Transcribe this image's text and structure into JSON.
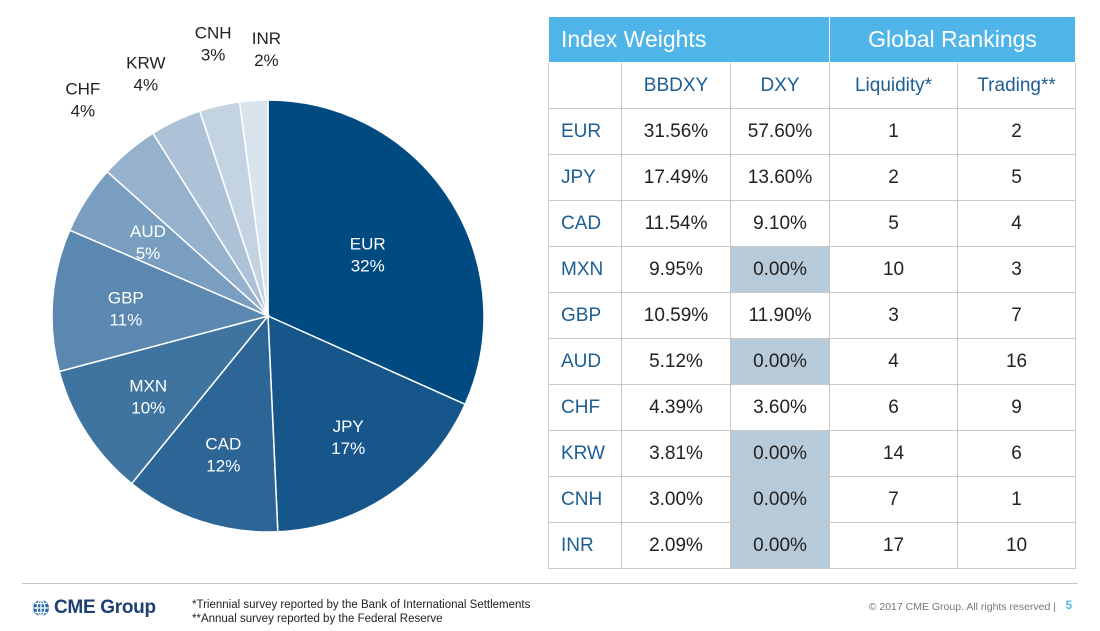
{
  "chart_data": [
    {
      "type": "pie",
      "slices": [
        {
          "label": "EUR",
          "pct_label": "32%",
          "value": 31.56,
          "color": "#004a82"
        },
        {
          "label": "JPY",
          "pct_label": "17%",
          "value": 17.49,
          "color": "#16568b"
        },
        {
          "label": "CAD",
          "pct_label": "12%",
          "value": 11.54,
          "color": "#2c6596"
        },
        {
          "label": "MXN",
          "pct_label": "10%",
          "value": 9.95,
          "color": "#3f74a1"
        },
        {
          "label": "GBP",
          "pct_label": "11%",
          "value": 10.59,
          "color": "#5a88b0"
        },
        {
          "label": "AUD",
          "pct_label": "5%",
          "value": 5.12,
          "color": "#7a9ec0"
        },
        {
          "label": "CHF",
          "pct_label": "4%",
          "value": 4.39,
          "color": "#96b1cc"
        },
        {
          "label": "KRW",
          "pct_label": "4%",
          "value": 3.81,
          "color": "#adc2d7"
        },
        {
          "label": "CNH",
          "pct_label": "3%",
          "value": 3.0,
          "color": "#c3d3e2"
        },
        {
          "label": "INR",
          "pct_label": "2%",
          "value": 2.09,
          "color": "#d9e4ed"
        }
      ]
    },
    {
      "type": "table",
      "group_headers": [
        "Index Weights",
        "Global Rankings"
      ],
      "columns": [
        "BBDXY",
        "DXY",
        "Liquidity*",
        "Trading**"
      ],
      "rows": [
        {
          "ccy": "EUR",
          "bbdxy": "31.56%",
          "dxy": "57.60%",
          "liquidity": "1",
          "trading": "2"
        },
        {
          "ccy": "JPY",
          "bbdxy": "17.49%",
          "dxy": "13.60%",
          "liquidity": "2",
          "trading": "5"
        },
        {
          "ccy": "CAD",
          "bbdxy": "11.54%",
          "dxy": "9.10%",
          "liquidity": "5",
          "trading": "4"
        },
        {
          "ccy": "MXN",
          "bbdxy": "9.95%",
          "dxy": "0.00%",
          "liquidity": "10",
          "trading": "3"
        },
        {
          "ccy": "GBP",
          "bbdxy": "10.59%",
          "dxy": "11.90%",
          "liquidity": "3",
          "trading": "7"
        },
        {
          "ccy": "AUD",
          "bbdxy": "5.12%",
          "dxy": "0.00%",
          "liquidity": "4",
          "trading": "16"
        },
        {
          "ccy": "CHF",
          "bbdxy": "4.39%",
          "dxy": "3.60%",
          "liquidity": "6",
          "trading": "9"
        },
        {
          "ccy": "KRW",
          "bbdxy": "3.81%",
          "dxy": "0.00%",
          "liquidity": "14",
          "trading": "6"
        },
        {
          "ccy": "CNH",
          "bbdxy": "3.00%",
          "dxy": "0.00%",
          "liquidity": "7",
          "trading": "1"
        },
        {
          "ccy": "INR",
          "bbdxy": "2.09%",
          "dxy": "0.00%",
          "liquidity": "17",
          "trading": "10"
        }
      ],
      "highlight_color": "#b7cad9",
      "header_color": "#4fb5e8"
    }
  ],
  "footer": {
    "logo_text": "CME Group",
    "logo_icon": "globe-icon",
    "footnote1_a": "*Triennial survey reported by the ",
    "footnote1_b": "Bank of International Settlements",
    "footnote2": "**Annual survey reported by the Federal Reserve",
    "copyright": "© 2017 CME Group. All rights reserved |",
    "page": "5"
  }
}
